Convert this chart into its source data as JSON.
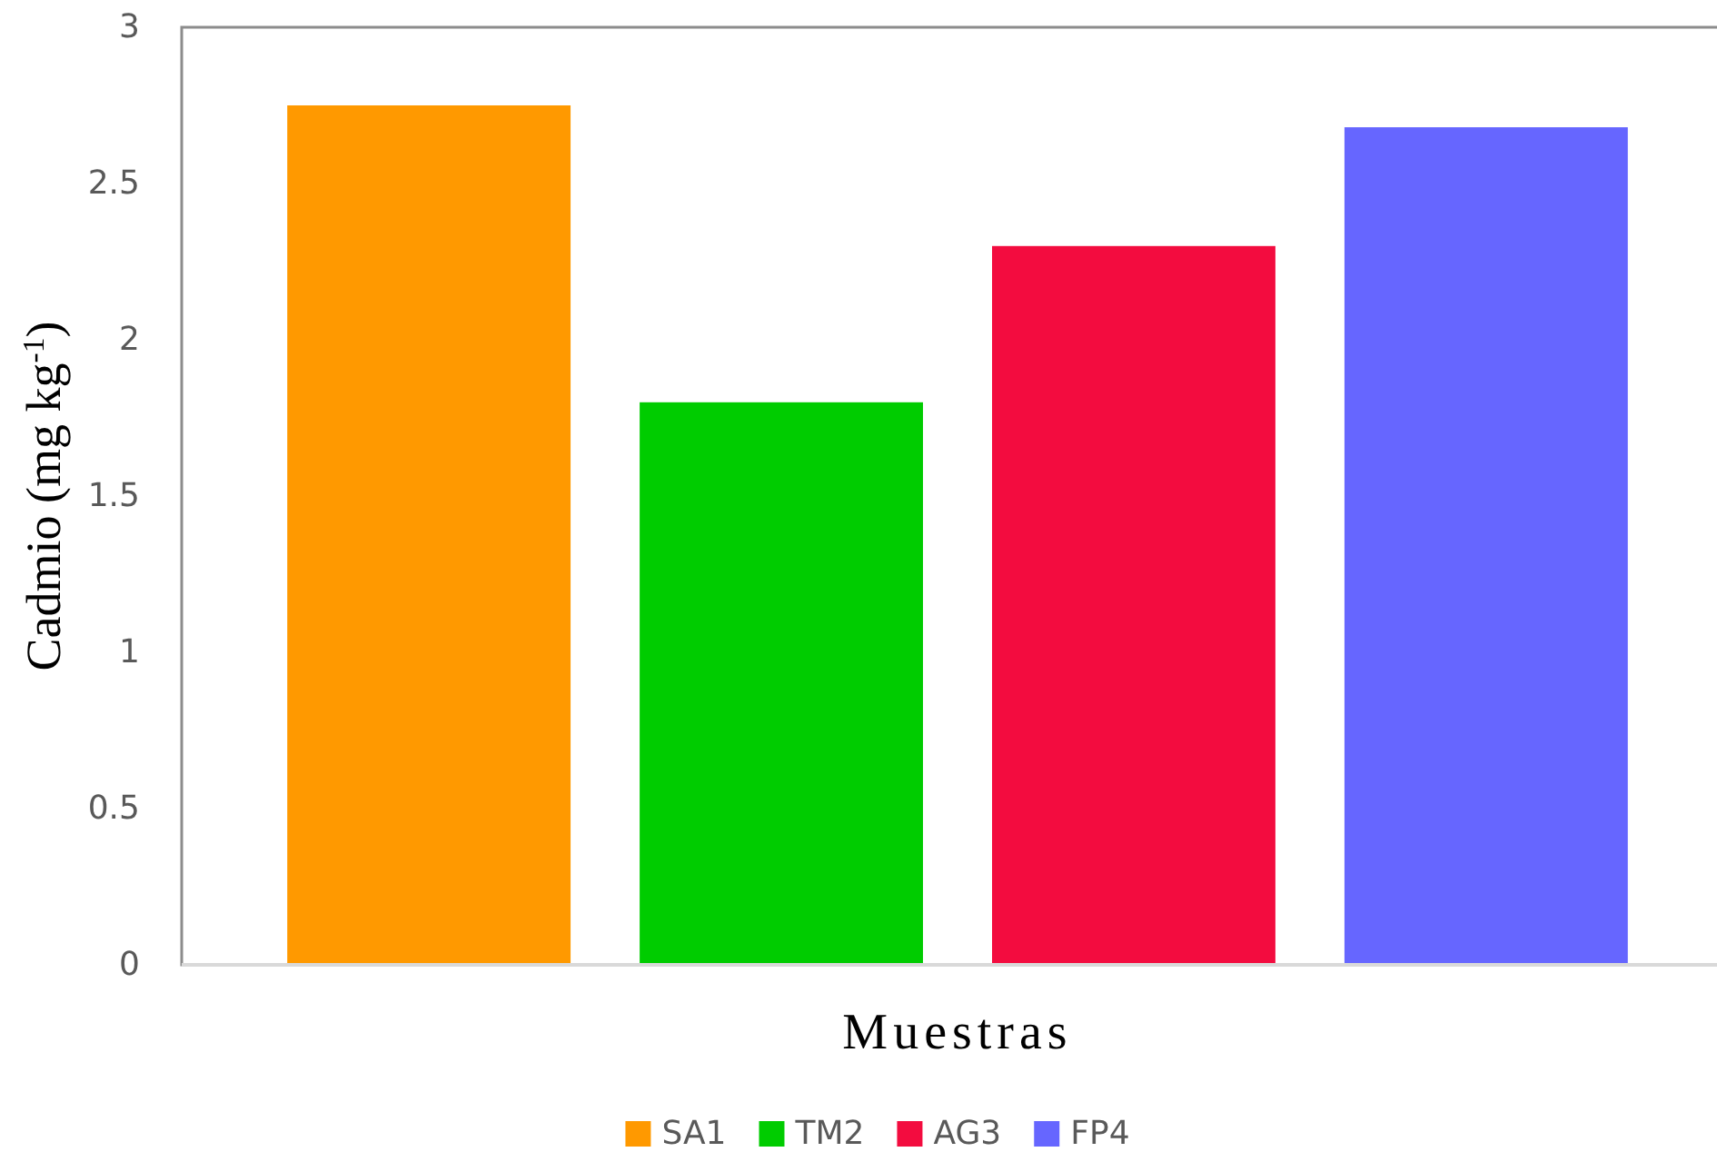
{
  "chart_data": {
    "type": "bar",
    "ylabel": "Cadmio  (mg kg$^{-1}$)",
    "xlabel": "Muestras",
    "categories": [
      null
    ],
    "series": [
      {
        "name": "SA1",
        "color": "#ff9900",
        "values": [
          2.75
        ]
      },
      {
        "name": "TM2",
        "color": "#00cc00",
        "values": [
          1.8
        ]
      },
      {
        "name": "AG3",
        "color": "#f30c3f",
        "values": [
          2.3
        ]
      },
      {
        "name": "FP4",
        "color": "#6666ff",
        "values": [
          2.68
        ]
      }
    ],
    "ylim": [
      0,
      3
    ],
    "yticks": [
      0,
      0.5,
      1,
      1.5,
      2,
      2.5,
      3
    ],
    "legend": "bottom"
  }
}
